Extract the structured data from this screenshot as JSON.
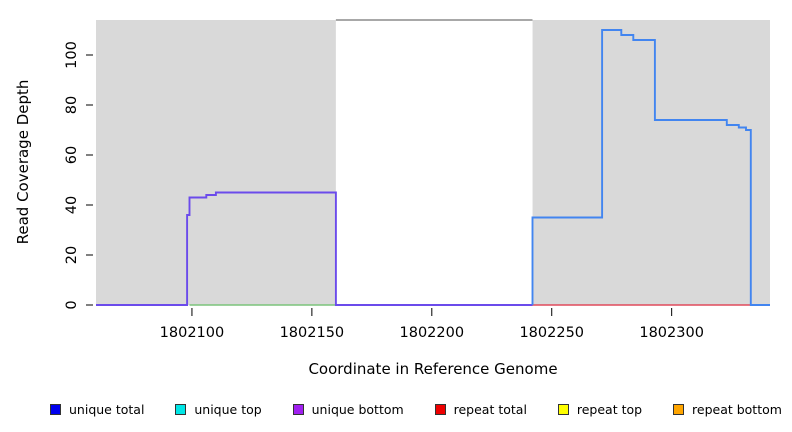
{
  "figure": {
    "xaxis_title": "Coordinate in Reference Genome",
    "yaxis_title": "Read Coverage Depth"
  },
  "chart_data": {
    "type": "line",
    "subtype": "step-coverage-plot",
    "title": "",
    "xlabel": "Coordinate in Reference Genome",
    "ylabel": "Read Coverage Depth",
    "xlim": [
      1802060,
      1802341
    ],
    "ylim": [
      0,
      114
    ],
    "x_ticks": [
      1802100,
      1802150,
      1802200,
      1802250,
      1802300
    ],
    "y_ticks": [
      0,
      20,
      40,
      60,
      80,
      100
    ],
    "grid": false,
    "plot_background": "#ffffff",
    "shaded_regions": [
      {
        "name": "left-gray-region",
        "x0": 1802060,
        "x1": 1802160,
        "color": "#d9d9d9"
      },
      {
        "name": "right-gray-region",
        "x0": 1802242,
        "x1": 1802341,
        "color": "#d9d9d9"
      }
    ],
    "series": [
      {
        "name": "unique-top-baseline-left",
        "color": "#7cc47c",
        "width": 1.4,
        "points": [
          [
            1802099,
            0
          ],
          [
            1802160,
            0
          ]
        ]
      },
      {
        "name": "repeat-total-baseline-right",
        "color": "#e04a5c",
        "width": 1.4,
        "points": [
          [
            1802242,
            0
          ],
          [
            1802341,
            0
          ]
        ]
      },
      {
        "name": "unique-bottom-left-segment",
        "color": "#6b4beb",
        "width": 1.9,
        "points": [
          [
            1802060,
            0
          ],
          [
            1802098,
            0
          ],
          [
            1802098,
            36
          ],
          [
            1802099,
            36
          ],
          [
            1802099,
            43
          ],
          [
            1802106,
            43
          ],
          [
            1802106,
            44
          ],
          [
            1802110,
            44
          ],
          [
            1802110,
            45
          ],
          [
            1802160,
            45
          ],
          [
            1802160,
            0
          ],
          [
            1802242,
            0
          ]
        ]
      },
      {
        "name": "unique-total-right-segment",
        "color": "#4285f0",
        "width": 1.9,
        "points": [
          [
            1802242,
            0
          ],
          [
            1802242,
            35
          ],
          [
            1802271,
            35
          ],
          [
            1802271,
            110
          ],
          [
            1802279,
            110
          ],
          [
            1802279,
            108
          ],
          [
            1802284,
            108
          ],
          [
            1802284,
            106
          ],
          [
            1802293,
            106
          ],
          [
            1802293,
            74
          ],
          [
            1802323,
            74
          ],
          [
            1802323,
            72
          ],
          [
            1802328,
            72
          ],
          [
            1802328,
            71
          ],
          [
            1802331,
            71
          ],
          [
            1802331,
            70
          ],
          [
            1802333,
            70
          ],
          [
            1802333,
            0
          ],
          [
            1802341,
            0
          ]
        ]
      },
      {
        "name": "clipped-coverage-gap-segment",
        "color": "#8c8c8c",
        "width": 1.4,
        "points": [
          [
            1802160,
            114
          ],
          [
            1802242,
            114
          ]
        ]
      }
    ],
    "legend": {
      "position": "bottom",
      "items": [
        {
          "label": "unique total",
          "color": "#0000ee"
        },
        {
          "label": "unique top",
          "color": "#00e6e6"
        },
        {
          "label": "unique bottom",
          "color": "#a020f0"
        },
        {
          "label": "repeat total",
          "color": "#ee0000"
        },
        {
          "label": "repeat top",
          "color": "#ffff00"
        },
        {
          "label": "repeat bottom",
          "color": "#ffa500"
        }
      ]
    }
  }
}
